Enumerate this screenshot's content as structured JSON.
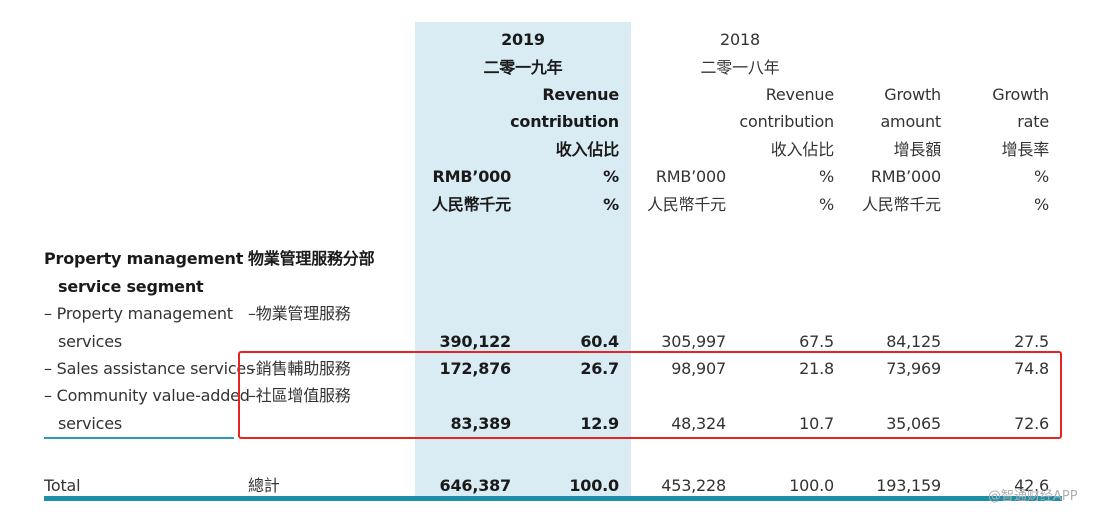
{
  "header": {
    "year_2019": "2019",
    "year_2019_cn": "二零一九年",
    "year_2018": "2018",
    "year_2018_cn": "二零一八年",
    "col_revcontrib_2019": [
      "Revenue",
      "contribution",
      "收入佔比"
    ],
    "col_revcontrib_2018": [
      "Revenue",
      "contribution",
      "收入佔比"
    ],
    "col_growth_amount": [
      "Growth",
      "amount",
      "增長額"
    ],
    "col_growth_rate": [
      "Growth",
      "rate",
      "增長率"
    ],
    "unit_rmb": "RMB’000",
    "unit_rmb_cn": "人民幣千元",
    "unit_pct": "%"
  },
  "segment": {
    "title_en_1": "Property management",
    "title_en_2": "service segment",
    "title_cn": "物業管理服務分部"
  },
  "rows": [
    {
      "label_en_1": "– Property management",
      "label_en_2": "services",
      "label_cn": "–物業管理服務",
      "v2019": "390,122",
      "p2019": "60.4",
      "v2018": "305,997",
      "p2018": "67.5",
      "growth": "84,125",
      "rate": "27.5"
    },
    {
      "label_en_1": "– Sales assistance services",
      "label_cn": "–銷售輔助服務",
      "v2019": "172,876",
      "p2019": "26.7",
      "v2018": "98,907",
      "p2018": "21.8",
      "growth": "73,969",
      "rate": "74.8"
    },
    {
      "label_en_1": "– Community value-added",
      "label_en_2": "services",
      "label_cn": "–社區增值服務",
      "v2019": "83,389",
      "p2019": "12.9",
      "v2018": "48,324",
      "p2018": "10.7",
      "growth": "35,065",
      "rate": "72.6"
    }
  ],
  "total": {
    "label_en": "Total",
    "label_cn": "總計",
    "v2019": "646,387",
    "p2019": "100.0",
    "v2018": "453,228",
    "p2018": "100.0",
    "growth": "193,159",
    "rate": "42.6"
  },
  "watermark": "@智通财经APP",
  "colors": {
    "highlight": "#d9ecf3",
    "rule": "#1e8fa8",
    "box": "#e52525"
  }
}
